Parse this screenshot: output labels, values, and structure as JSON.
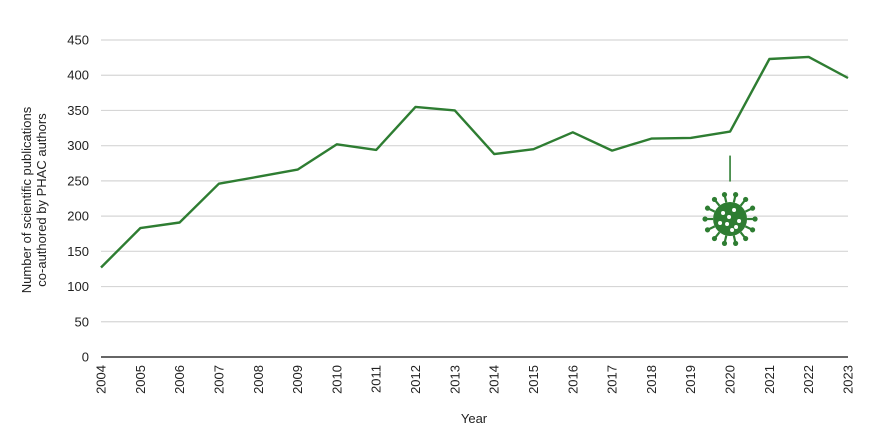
{
  "chart_data": {
    "type": "line",
    "title": "",
    "xlabel": "Year",
    "ylabel_lines": [
      "Number of scientific publications",
      "co-authored by PHAC authors"
    ],
    "x": [
      "2004",
      "2005",
      "2006",
      "2007",
      "2008",
      "2009",
      "2010",
      "2011",
      "2012",
      "2013",
      "2014",
      "2015",
      "2016",
      "2017",
      "2018",
      "2019",
      "2020",
      "2021",
      "2022",
      "2023"
    ],
    "series": [
      {
        "values": [
          127,
          183,
          191,
          246,
          256,
          266,
          302,
          294,
          355,
          350,
          288,
          295,
          319,
          293,
          310,
          311,
          320,
          423,
          426,
          396
        ]
      }
    ],
    "yticks": [
      "0",
      "50",
      "100",
      "150",
      "200",
      "250",
      "300",
      "350",
      "400",
      "450"
    ],
    "ylim": [
      0,
      450
    ],
    "grid": true,
    "line_color": "#2e7d32",
    "annotation": {
      "x": "2020",
      "icon": "virus-icon"
    }
  }
}
